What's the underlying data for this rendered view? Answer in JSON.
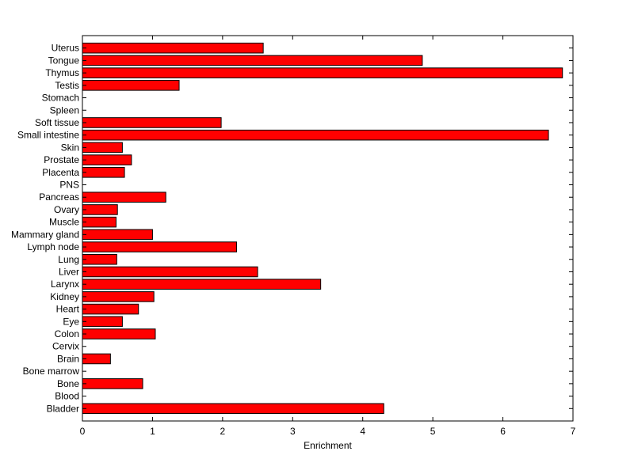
{
  "chart_data": {
    "type": "bar",
    "orientation": "horizontal",
    "title": "",
    "xlabel": "Enrichment",
    "ylabel": "",
    "xlim": [
      0,
      7
    ],
    "xticks": [
      0,
      1,
      2,
      3,
      4,
      5,
      6,
      7
    ],
    "grid": false,
    "legend": null,
    "bar_color": "#ff0000",
    "categories": [
      "Uterus",
      "Tongue",
      "Thymus",
      "Testis",
      "Stomach",
      "Spleen",
      "Soft tissue",
      "Small intestine",
      "Skin",
      "Prostate",
      "Placenta",
      "PNS",
      "Pancreas",
      "Ovary",
      "Muscle",
      "Mammary gland",
      "Lymph node",
      "Lung",
      "Liver",
      "Larynx",
      "Kidney",
      "Heart",
      "Eye",
      "Colon",
      "Cervix",
      "Brain",
      "Bone marrow",
      "Bone",
      "Blood",
      "Bladder"
    ],
    "values": [
      2.58,
      4.85,
      6.85,
      1.38,
      0,
      0,
      1.98,
      6.65,
      0.57,
      0.7,
      0.6,
      0,
      1.19,
      0.5,
      0.48,
      1.0,
      2.2,
      0.49,
      2.5,
      3.4,
      1.02,
      0.8,
      0.57,
      1.04,
      0,
      0.4,
      0,
      0.86,
      0,
      4.3
    ]
  }
}
